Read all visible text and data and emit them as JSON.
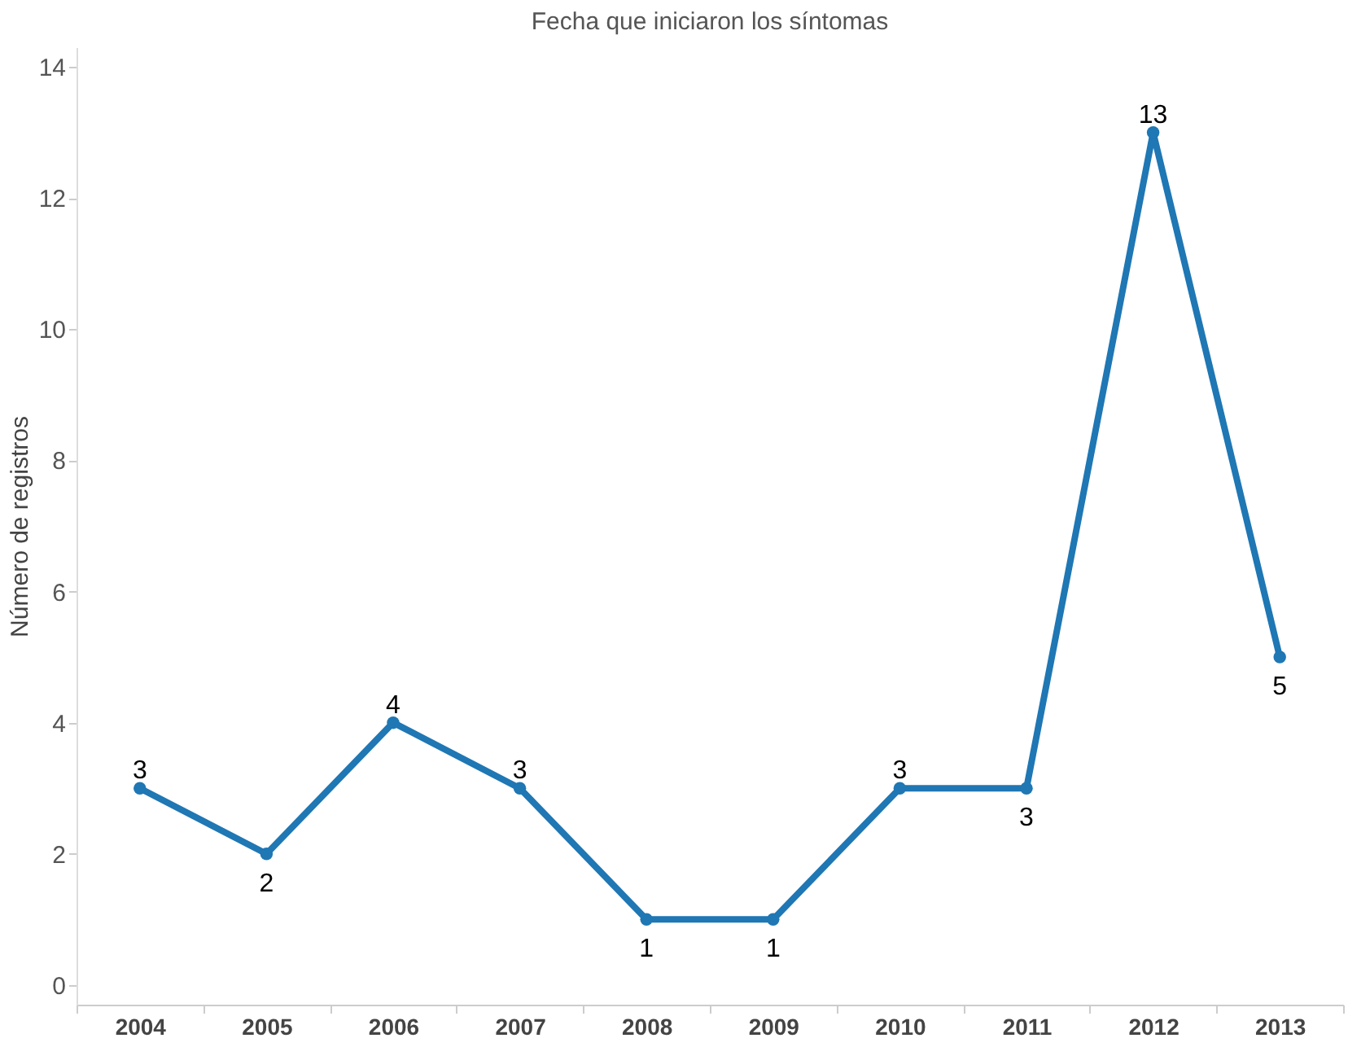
{
  "chart_data": {
    "type": "line",
    "title": "Fecha que iniciaron los síntomas",
    "ylabel": "Número de registros",
    "categories": [
      "2004",
      "2005",
      "2006",
      "2007",
      "2008",
      "2009",
      "2010",
      "2011",
      "2012",
      "2013"
    ],
    "series": [
      {
        "color": "#1f77b4",
        "values": [
          3,
          2,
          4,
          3,
          1,
          1,
          3,
          3,
          13,
          5
        ]
      }
    ],
    "ylim": [
      -0.3,
      14.3
    ],
    "yticks": [
      0,
      2,
      4,
      6,
      8,
      10,
      12,
      14
    ],
    "grid": false,
    "data_labels": true,
    "marker": "circle",
    "line_style": "solid"
  }
}
